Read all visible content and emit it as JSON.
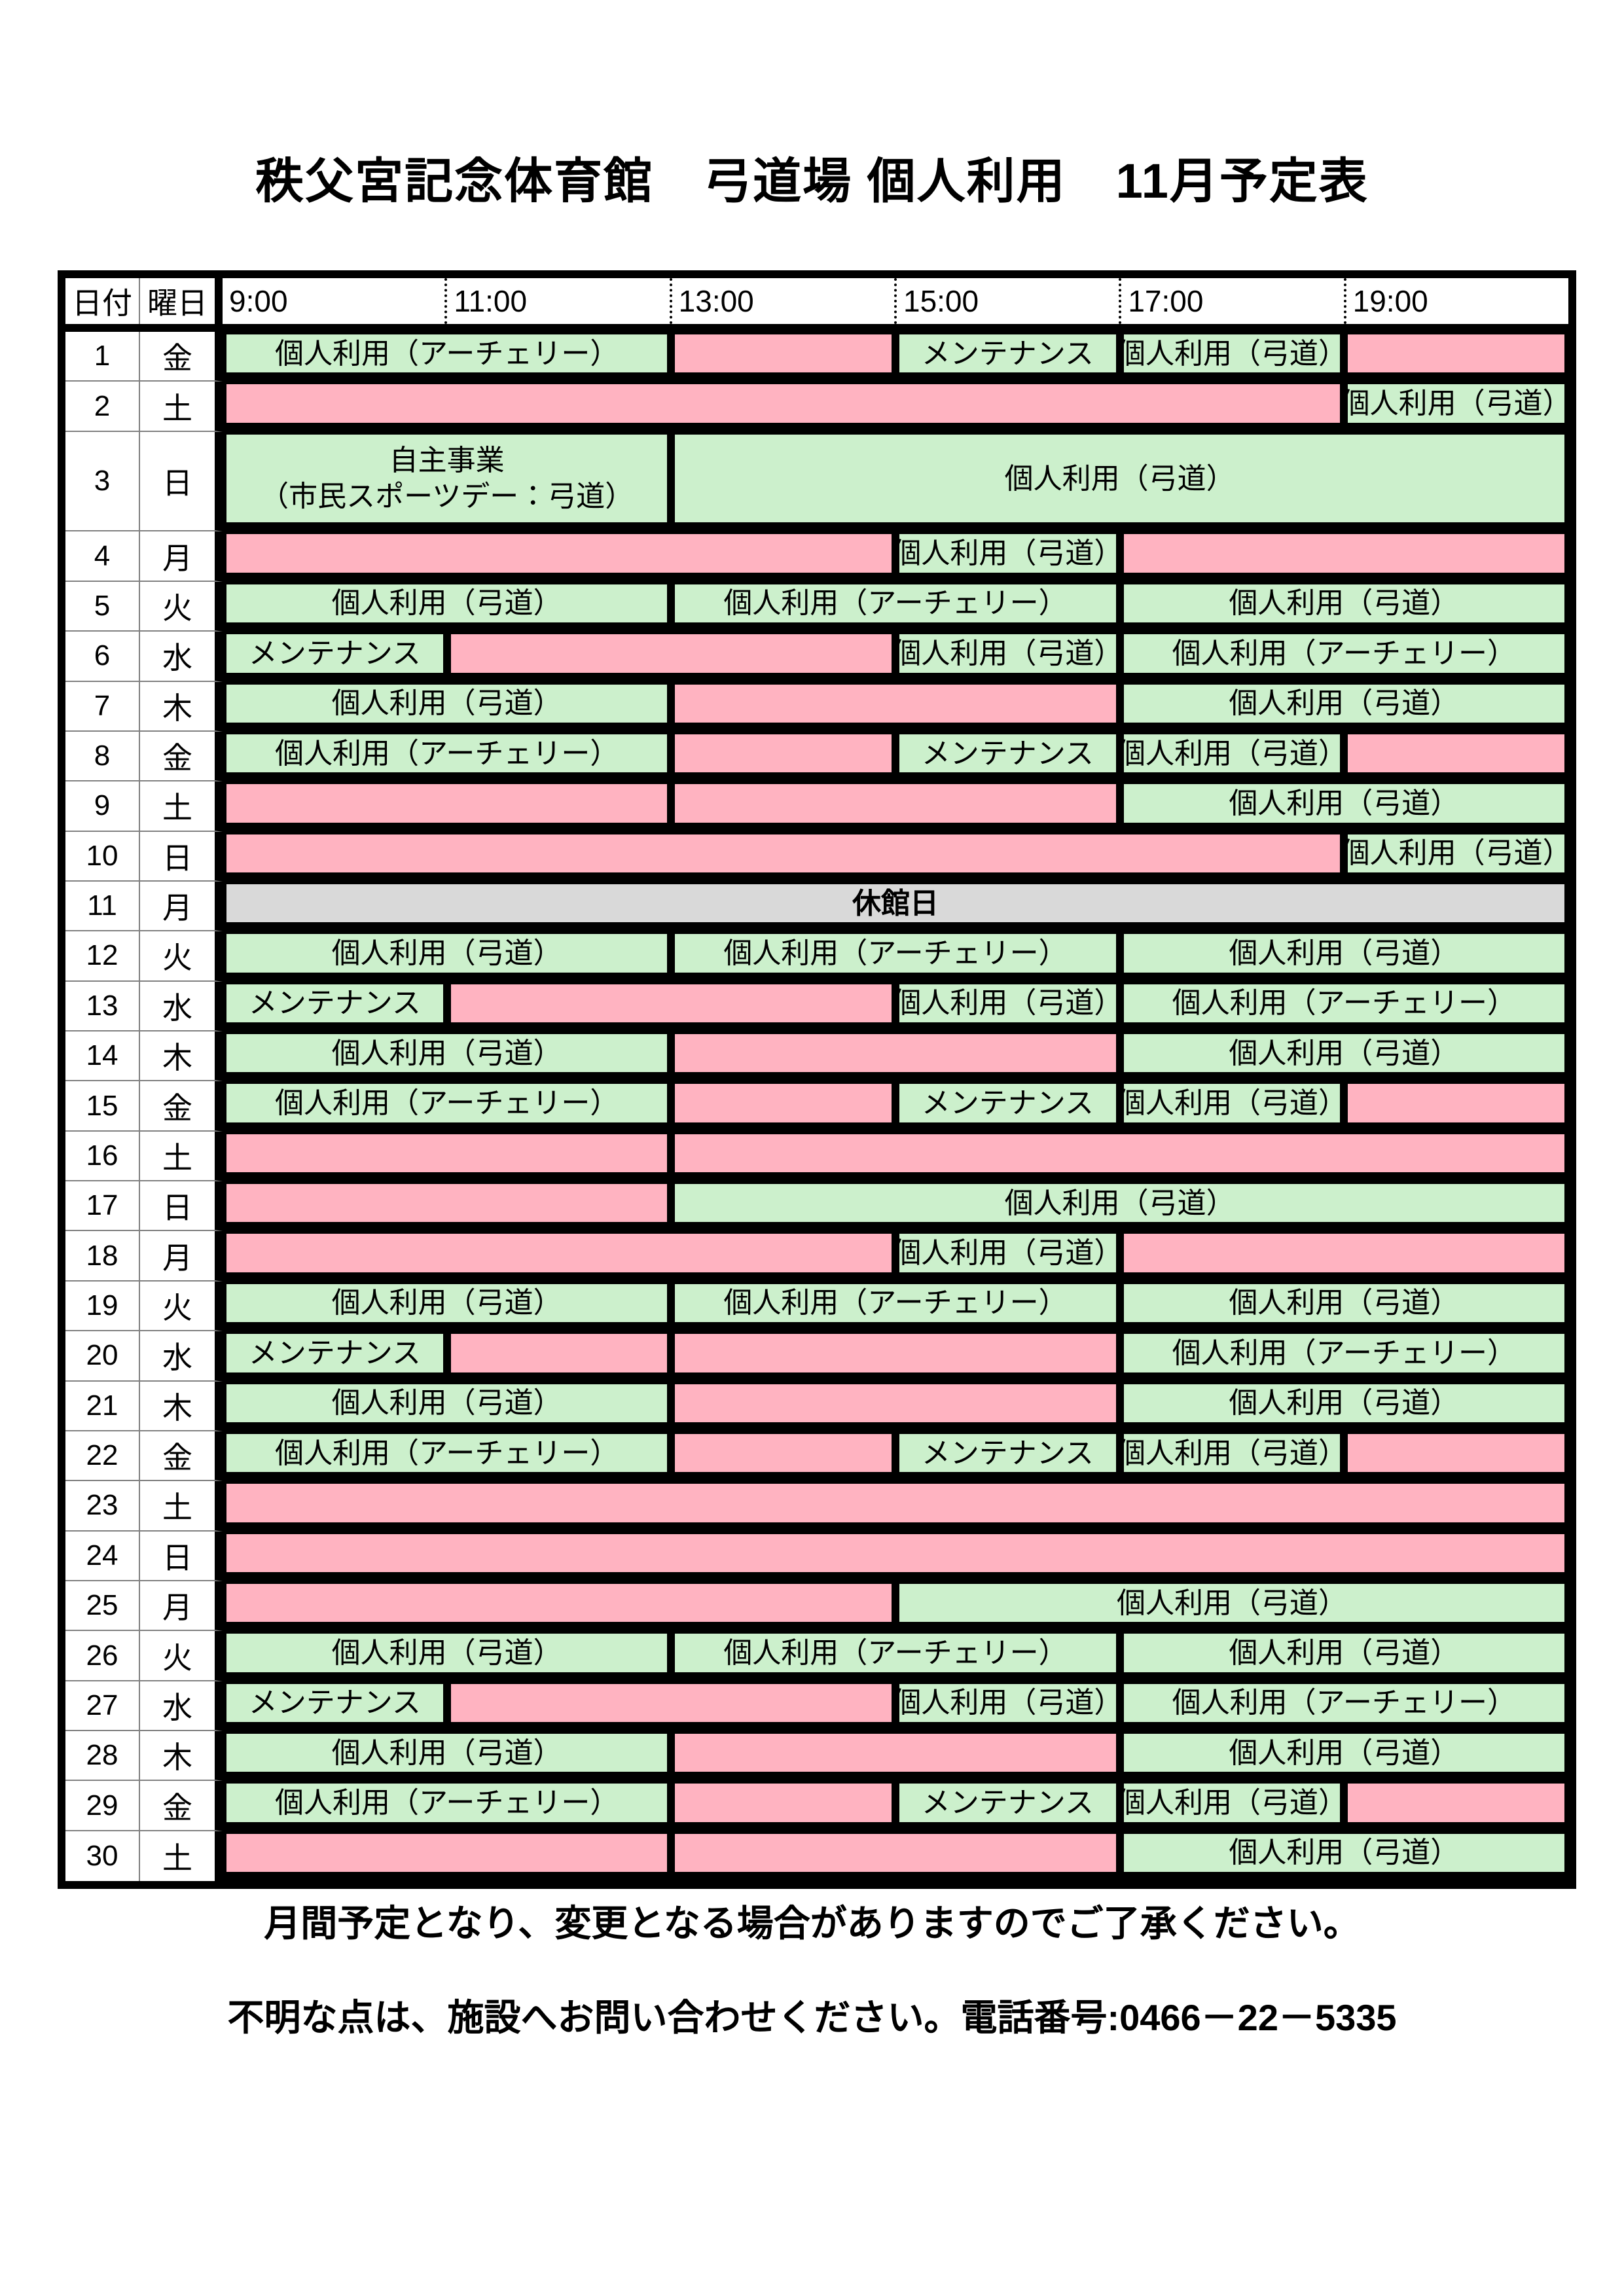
{
  "title": "秩父宮記念体育館　弓道場 個人利用　11月予定表",
  "colors": {
    "available": "#ccf0cc",
    "unavailable": "#ffb3c1",
    "closed": "#d9d9d9",
    "grid": "#000000",
    "thin_line": "#808080"
  },
  "table": {
    "header": {
      "date_label": "日付",
      "day_label": "曜日",
      "times": [
        "9:00",
        "11:00",
        "13:00",
        "15:00",
        "17:00",
        "19:00"
      ]
    },
    "time_axis": {
      "start": 9,
      "end": 21
    },
    "rows": [
      {
        "date": "1",
        "day": "金",
        "blocks": [
          {
            "start": 9,
            "end": 13,
            "status": "available",
            "label": "個人利用（アーチェリー）"
          },
          {
            "start": 13,
            "end": 15,
            "status": "unavailable",
            "label": ""
          },
          {
            "start": 15,
            "end": 17,
            "status": "available",
            "label": "メンテナンス"
          },
          {
            "start": 17,
            "end": 19,
            "status": "available",
            "label": "個人利用（弓道）"
          },
          {
            "start": 19,
            "end": 21,
            "status": "unavailable",
            "label": ""
          }
        ]
      },
      {
        "date": "2",
        "day": "土",
        "blocks": [
          {
            "start": 9,
            "end": 19,
            "status": "unavailable",
            "label": ""
          },
          {
            "start": 19,
            "end": 21,
            "status": "available",
            "label": "個人利用（弓道）"
          }
        ]
      },
      {
        "date": "3",
        "day": "日",
        "tall": true,
        "blocks": [
          {
            "start": 9,
            "end": 13,
            "status": "available",
            "label": "自主事業",
            "label2": "（市民スポーツデー：弓道）"
          },
          {
            "start": 13,
            "end": 21,
            "status": "available",
            "label": "個人利用（弓道）"
          }
        ]
      },
      {
        "date": "4",
        "day": "月",
        "blocks": [
          {
            "start": 9,
            "end": 15,
            "status": "unavailable",
            "label": ""
          },
          {
            "start": 15,
            "end": 17,
            "status": "available",
            "label": "個人利用（弓道）"
          },
          {
            "start": 17,
            "end": 21,
            "status": "unavailable",
            "label": ""
          }
        ]
      },
      {
        "date": "5",
        "day": "火",
        "blocks": [
          {
            "start": 9,
            "end": 13,
            "status": "available",
            "label": "個人利用（弓道）"
          },
          {
            "start": 13,
            "end": 17,
            "status": "available",
            "label": "個人利用（アーチェリー）"
          },
          {
            "start": 17,
            "end": 21,
            "status": "available",
            "label": "個人利用（弓道）"
          }
        ]
      },
      {
        "date": "6",
        "day": "水",
        "blocks": [
          {
            "start": 9,
            "end": 11,
            "status": "available",
            "label": "メンテナンス"
          },
          {
            "start": 11,
            "end": 15,
            "status": "unavailable",
            "label": ""
          },
          {
            "start": 15,
            "end": 17,
            "status": "available",
            "label": "個人利用（弓道）"
          },
          {
            "start": 17,
            "end": 21,
            "status": "available",
            "label": "個人利用（アーチェリー）"
          }
        ]
      },
      {
        "date": "7",
        "day": "木",
        "blocks": [
          {
            "start": 9,
            "end": 13,
            "status": "available",
            "label": "個人利用（弓道）"
          },
          {
            "start": 13,
            "end": 17,
            "status": "unavailable",
            "label": ""
          },
          {
            "start": 17,
            "end": 21,
            "status": "available",
            "label": "個人利用（弓道）"
          }
        ]
      },
      {
        "date": "8",
        "day": "金",
        "blocks": [
          {
            "start": 9,
            "end": 13,
            "status": "available",
            "label": "個人利用（アーチェリー）"
          },
          {
            "start": 13,
            "end": 15,
            "status": "unavailable",
            "label": ""
          },
          {
            "start": 15,
            "end": 17,
            "status": "available",
            "label": "メンテナンス"
          },
          {
            "start": 17,
            "end": 19,
            "status": "available",
            "label": "個人利用（弓道）"
          },
          {
            "start": 19,
            "end": 21,
            "status": "unavailable",
            "label": ""
          }
        ]
      },
      {
        "date": "9",
        "day": "土",
        "blocks": [
          {
            "start": 9,
            "end": 13,
            "status": "unavailable",
            "label": ""
          },
          {
            "start": 13,
            "end": 17,
            "status": "unavailable",
            "label": ""
          },
          {
            "start": 17,
            "end": 21,
            "status": "available",
            "label": "個人利用（弓道）"
          }
        ]
      },
      {
        "date": "10",
        "day": "日",
        "blocks": [
          {
            "start": 9,
            "end": 19,
            "status": "unavailable",
            "label": ""
          },
          {
            "start": 19,
            "end": 21,
            "status": "available",
            "label": "個人利用（弓道）"
          }
        ]
      },
      {
        "date": "11",
        "day": "月",
        "blocks": [
          {
            "start": 9,
            "end": 21,
            "status": "closed",
            "label": "休館日"
          }
        ]
      },
      {
        "date": "12",
        "day": "火",
        "blocks": [
          {
            "start": 9,
            "end": 13,
            "status": "available",
            "label": "個人利用（弓道）"
          },
          {
            "start": 13,
            "end": 17,
            "status": "available",
            "label": "個人利用（アーチェリー）"
          },
          {
            "start": 17,
            "end": 21,
            "status": "available",
            "label": "個人利用（弓道）"
          }
        ]
      },
      {
        "date": "13",
        "day": "水",
        "blocks": [
          {
            "start": 9,
            "end": 11,
            "status": "available",
            "label": "メンテナンス"
          },
          {
            "start": 11,
            "end": 15,
            "status": "unavailable",
            "label": ""
          },
          {
            "start": 15,
            "end": 17,
            "status": "available",
            "label": "個人利用（弓道）"
          },
          {
            "start": 17,
            "end": 21,
            "status": "available",
            "label": "個人利用（アーチェリー）"
          }
        ]
      },
      {
        "date": "14",
        "day": "木",
        "blocks": [
          {
            "start": 9,
            "end": 13,
            "status": "available",
            "label": "個人利用（弓道）"
          },
          {
            "start": 13,
            "end": 17,
            "status": "unavailable",
            "label": ""
          },
          {
            "start": 17,
            "end": 21,
            "status": "available",
            "label": "個人利用（弓道）"
          }
        ]
      },
      {
        "date": "15",
        "day": "金",
        "blocks": [
          {
            "start": 9,
            "end": 13,
            "status": "available",
            "label": "個人利用（アーチェリー）"
          },
          {
            "start": 13,
            "end": 15,
            "status": "unavailable",
            "label": ""
          },
          {
            "start": 15,
            "end": 17,
            "status": "available",
            "label": "メンテナンス"
          },
          {
            "start": 17,
            "end": 19,
            "status": "available",
            "label": "個人利用（弓道）"
          },
          {
            "start": 19,
            "end": 21,
            "status": "unavailable",
            "label": ""
          }
        ]
      },
      {
        "date": "16",
        "day": "土",
        "blocks": [
          {
            "start": 9,
            "end": 13,
            "status": "unavailable",
            "label": ""
          },
          {
            "start": 13,
            "end": 21,
            "status": "unavailable",
            "label": ""
          }
        ]
      },
      {
        "date": "17",
        "day": "日",
        "blocks": [
          {
            "start": 9,
            "end": 13,
            "status": "unavailable",
            "label": ""
          },
          {
            "start": 13,
            "end": 21,
            "status": "available",
            "label": "個人利用（弓道）"
          }
        ]
      },
      {
        "date": "18",
        "day": "月",
        "blocks": [
          {
            "start": 9,
            "end": 15,
            "status": "unavailable",
            "label": ""
          },
          {
            "start": 15,
            "end": 17,
            "status": "available",
            "label": "個人利用（弓道）"
          },
          {
            "start": 17,
            "end": 21,
            "status": "unavailable",
            "label": ""
          }
        ]
      },
      {
        "date": "19",
        "day": "火",
        "blocks": [
          {
            "start": 9,
            "end": 13,
            "status": "available",
            "label": "個人利用（弓道）"
          },
          {
            "start": 13,
            "end": 17,
            "status": "available",
            "label": "個人利用（アーチェリー）"
          },
          {
            "start": 17,
            "end": 21,
            "status": "available",
            "label": "個人利用（弓道）"
          }
        ]
      },
      {
        "date": "20",
        "day": "水",
        "blocks": [
          {
            "start": 9,
            "end": 11,
            "status": "available",
            "label": "メンテナンス"
          },
          {
            "start": 11,
            "end": 13,
            "status": "unavailable",
            "label": ""
          },
          {
            "start": 13,
            "end": 17,
            "status": "unavailable",
            "label": ""
          },
          {
            "start": 17,
            "end": 21,
            "status": "available",
            "label": "個人利用（アーチェリー）"
          }
        ]
      },
      {
        "date": "21",
        "day": "木",
        "blocks": [
          {
            "start": 9,
            "end": 13,
            "status": "available",
            "label": "個人利用（弓道）"
          },
          {
            "start": 13,
            "end": 17,
            "status": "unavailable",
            "label": ""
          },
          {
            "start": 17,
            "end": 21,
            "status": "available",
            "label": "個人利用（弓道）"
          }
        ]
      },
      {
        "date": "22",
        "day": "金",
        "blocks": [
          {
            "start": 9,
            "end": 13,
            "status": "available",
            "label": "個人利用（アーチェリー）"
          },
          {
            "start": 13,
            "end": 15,
            "status": "unavailable",
            "label": ""
          },
          {
            "start": 15,
            "end": 17,
            "status": "available",
            "label": "メンテナンス"
          },
          {
            "start": 17,
            "end": 19,
            "status": "available",
            "label": "個人利用（弓道）"
          },
          {
            "start": 19,
            "end": 21,
            "status": "unavailable",
            "label": ""
          }
        ]
      },
      {
        "date": "23",
        "day": "土",
        "blocks": [
          {
            "start": 9,
            "end": 21,
            "status": "unavailable",
            "label": ""
          }
        ]
      },
      {
        "date": "24",
        "day": "日",
        "blocks": [
          {
            "start": 9,
            "end": 21,
            "status": "unavailable",
            "label": ""
          }
        ]
      },
      {
        "date": "25",
        "day": "月",
        "blocks": [
          {
            "start": 9,
            "end": 15,
            "status": "unavailable",
            "label": ""
          },
          {
            "start": 15,
            "end": 21,
            "status": "available",
            "label": "個人利用（弓道）"
          }
        ]
      },
      {
        "date": "26",
        "day": "火",
        "blocks": [
          {
            "start": 9,
            "end": 13,
            "status": "available",
            "label": "個人利用（弓道）"
          },
          {
            "start": 13,
            "end": 17,
            "status": "available",
            "label": "個人利用（アーチェリー）"
          },
          {
            "start": 17,
            "end": 21,
            "status": "available",
            "label": "個人利用（弓道）"
          }
        ]
      },
      {
        "date": "27",
        "day": "水",
        "blocks": [
          {
            "start": 9,
            "end": 11,
            "status": "available",
            "label": "メンテナンス"
          },
          {
            "start": 11,
            "end": 15,
            "status": "unavailable",
            "label": ""
          },
          {
            "start": 15,
            "end": 17,
            "status": "available",
            "label": "個人利用（弓道）"
          },
          {
            "start": 17,
            "end": 21,
            "status": "available",
            "label": "個人利用（アーチェリー）"
          }
        ]
      },
      {
        "date": "28",
        "day": "木",
        "blocks": [
          {
            "start": 9,
            "end": 13,
            "status": "available",
            "label": "個人利用（弓道）"
          },
          {
            "start": 13,
            "end": 17,
            "status": "unavailable",
            "label": ""
          },
          {
            "start": 17,
            "end": 21,
            "status": "available",
            "label": "個人利用（弓道）"
          }
        ]
      },
      {
        "date": "29",
        "day": "金",
        "blocks": [
          {
            "start": 9,
            "end": 13,
            "status": "available",
            "label": "個人利用（アーチェリー）"
          },
          {
            "start": 13,
            "end": 15,
            "status": "unavailable",
            "label": ""
          },
          {
            "start": 15,
            "end": 17,
            "status": "available",
            "label": "メンテナンス"
          },
          {
            "start": 17,
            "end": 19,
            "status": "available",
            "label": "個人利用（弓道）"
          },
          {
            "start": 19,
            "end": 21,
            "status": "unavailable",
            "label": ""
          }
        ]
      },
      {
        "date": "30",
        "day": "土",
        "blocks": [
          {
            "start": 9,
            "end": 13,
            "status": "unavailable",
            "label": ""
          },
          {
            "start": 13,
            "end": 17,
            "status": "unavailable",
            "label": ""
          },
          {
            "start": 17,
            "end": 21,
            "status": "available",
            "label": "個人利用（弓道）"
          }
        ]
      }
    ]
  },
  "notes": [
    "月間予定となり、変更となる場合がありますのでご了承ください。",
    "不明な点は、施設へお問い合わせください。電話番号:0466－22－5335"
  ]
}
